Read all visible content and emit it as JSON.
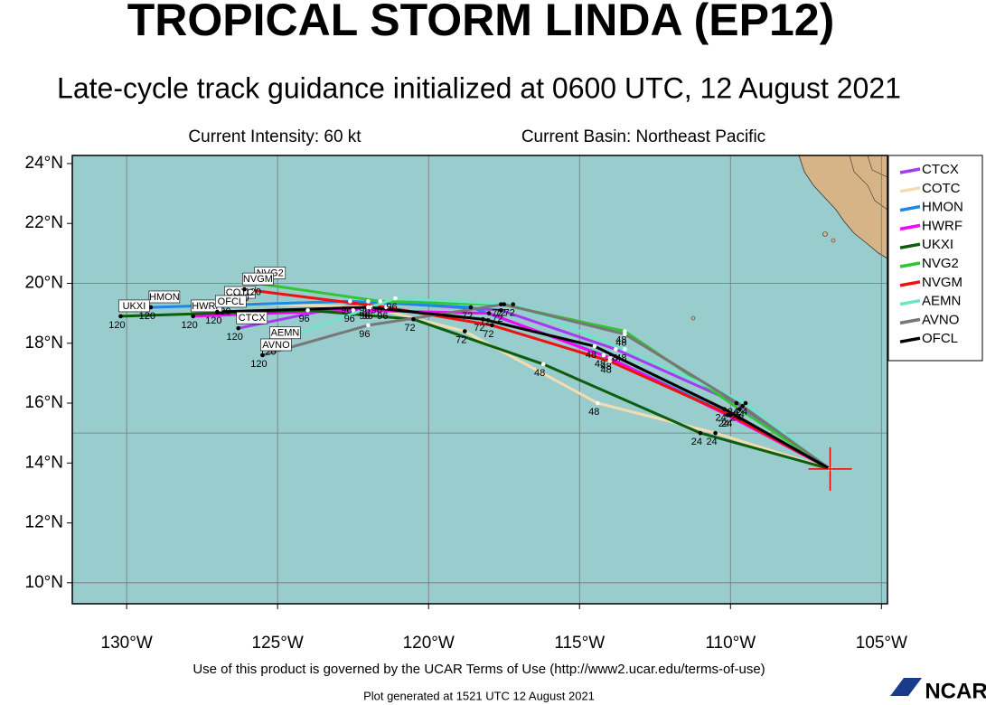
{
  "chart_data": {
    "type": "line",
    "title": "TROPICAL STORM LINDA (EP12)",
    "subtitle": "Late-cycle track guidance initialized at 0600 UTC, 12 August 2021",
    "intensity": "Current Intensity: 60 kt",
    "basin": "Current Basin: Northeast Pacific",
    "terms": "Use of this product is governed by the UCAR Terms of Use (http://www2.ucar.edu/terms-of-use)",
    "generated": "Plot generated at 1521 UTC   12 August 2021",
    "logo": "NCAR",
    "xlim": [
      -131.8,
      -104.8
    ],
    "ylim": [
      9.3,
      24.27
    ],
    "xticks": [
      {
        "value": -130,
        "label": "130°W"
      },
      {
        "value": -125,
        "label": "125°W"
      },
      {
        "value": -120,
        "label": "120°W"
      },
      {
        "value": -115,
        "label": "115°W"
      },
      {
        "value": -110,
        "label": "110°W"
      },
      {
        "value": -105,
        "label": "105°W"
      }
    ],
    "yticks": [
      {
        "value": 10,
        "label": "10°N"
      },
      {
        "value": 12,
        "label": "12°N"
      },
      {
        "value": 14,
        "label": "14°N"
      },
      {
        "value": 16,
        "label": "16°N"
      },
      {
        "value": 18,
        "label": "18°N"
      },
      {
        "value": 20,
        "label": "20°N"
      },
      {
        "value": 22,
        "label": "22°N"
      },
      {
        "value": 24,
        "label": "24°N"
      }
    ],
    "ygrid": [
      10,
      15,
      20
    ],
    "grid": true,
    "legend": "right",
    "series": [
      {
        "name": "CTCX",
        "color": "#a23cf0",
        "x": [
          -106.7,
          -109.8,
          -113.8,
          -117.6,
          -122.0,
          -126.3
        ],
        "values": [
          13.8,
          16.0,
          17.8,
          19.1,
          19.4,
          18.5
        ],
        "hours": [
          null,
          24,
          48,
          72,
          96,
          120
        ]
      },
      {
        "name": "COTC",
        "color": "#f3dcb0",
        "x": [
          -106.7,
          -110.5,
          -114.4,
          -118.8,
          -121.9,
          -126.7
        ],
        "values": [
          13.8,
          15.0,
          16.0,
          18.4,
          19.2,
          19.35
        ],
        "hours": [
          null,
          24,
          48,
          72,
          96,
          120
        ]
      },
      {
        "name": "HMON",
        "color": "#1e88e5",
        "x": [
          -106.7,
          -110.0,
          -114.2,
          -118.6,
          -122.6,
          -129.2
        ],
        "values": [
          13.8,
          15.6,
          17.6,
          19.2,
          19.4,
          19.2
        ],
        "hours": [
          null,
          24,
          48,
          72,
          96,
          120
        ]
      },
      {
        "name": "HWRF",
        "color": "#ff00ff",
        "x": [
          -106.7,
          -110.1,
          -114.0,
          -118.0,
          -122.5,
          -127.8
        ],
        "values": [
          13.8,
          15.6,
          17.5,
          19.0,
          19.1,
          18.9
        ],
        "hours": [
          null,
          24,
          48,
          72,
          96,
          120
        ]
      },
      {
        "name": "UKXI",
        "color": "#0b5e0b",
        "x": [
          -106.7,
          -111.0,
          -116.2,
          -120.5,
          -124.0,
          -130.2
        ],
        "values": [
          13.8,
          15.0,
          17.3,
          18.8,
          19.1,
          18.9
        ],
        "hours": [
          null,
          24,
          48,
          72,
          96,
          120
        ]
      },
      {
        "name": "NVG2",
        "color": "#33c433",
        "x": [
          -106.7,
          -109.7,
          -113.5,
          -117.6,
          -121.6,
          -125.7
        ],
        "values": [
          13.8,
          15.8,
          18.4,
          19.3,
          19.4,
          20.0
        ],
        "hours": [
          null,
          24,
          48,
          72,
          96,
          120
        ]
      },
      {
        "name": "NVGM",
        "color": "#ee1111",
        "x": [
          -106.7,
          -110.0,
          -114.0,
          -117.9,
          -121.4,
          -126.1
        ],
        "values": [
          13.8,
          15.6,
          17.4,
          18.6,
          19.2,
          19.8
        ],
        "hours": [
          null,
          24,
          48,
          72,
          96,
          120
        ]
      },
      {
        "name": "AEMN",
        "color": "#6fe3c8",
        "x": [
          -106.7,
          -109.5,
          -113.5,
          -117.2,
          -121.1,
          -125.2
        ],
        "values": [
          13.8,
          16.0,
          17.8,
          19.3,
          19.5,
          18.0
        ],
        "hours": [
          null,
          24,
          48,
          72,
          96,
          120
        ]
      },
      {
        "name": "AVNO",
        "color": "#777777",
        "x": [
          -106.7,
          -109.6,
          -113.5,
          -117.5,
          -122.0,
          -125.5
        ],
        "values": [
          13.8,
          15.9,
          18.3,
          19.3,
          18.6,
          17.6
        ],
        "hours": [
          null,
          24,
          48,
          72,
          96,
          120
        ]
      },
      {
        "name": "OFCL",
        "color": "#000000",
        "x": [
          -106.7,
          -110.2,
          -114.5,
          -118.2,
          -122.0,
          -127.0
        ],
        "values": [
          13.8,
          15.8,
          17.9,
          18.8,
          19.2,
          19.05
        ],
        "hours": [
          null,
          24,
          48,
          72,
          96,
          120
        ]
      }
    ]
  }
}
